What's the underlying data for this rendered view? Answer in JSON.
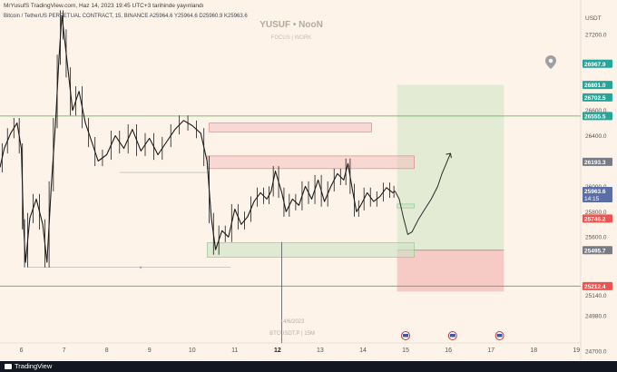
{
  "header": {
    "published": "MrYusufS TradingView.com, Haz 14, 2023 19:45 UTC+3 tarihinde yayınlandı",
    "symbol_line": "Bitcoin / TetherUS PERPETUAL CONTRACT, 15, BINANCE  A25964.6  Y25964.6  D25960.9  K25963.6"
  },
  "watermark": {
    "title": "YUSUF • NooN",
    "subtitle": "FOCUS | WORK"
  },
  "overlay": {
    "date_stamp": "14/6/2023",
    "symbol_stamp": "BTCUSDT.P | 15M"
  },
  "footer": {
    "brand": "TradingView"
  },
  "colors": {
    "background": "#fdf3e9",
    "candle": "#1a1a1a",
    "green_line": "#4caf50",
    "red_box": "#f2b8b5",
    "green_box": "#cde3c5",
    "price_tag_green": "#26a69a",
    "price_tag_red": "#ef5350",
    "price_tag_grey": "#787b86",
    "price_tag_blue": "#5b6ea8"
  },
  "chart_data": {
    "type": "candlestick",
    "y_axis_label": "USDT",
    "ylim": [
      24620,
      27400
    ],
    "yticks": [
      27200.0,
      26600.0,
      26400.0,
      26000.0,
      25800.0,
      25600.0,
      25140.0,
      24980.0,
      24700.0
    ],
    "xlim": [
      5.5,
      19.1
    ],
    "xticks": [
      {
        "x": 6,
        "label": "6"
      },
      {
        "x": 7,
        "label": "7"
      },
      {
        "x": 8,
        "label": "8"
      },
      {
        "x": 9,
        "label": "9"
      },
      {
        "x": 10,
        "label": "10"
      },
      {
        "x": 11,
        "label": "11"
      },
      {
        "x": 12,
        "label": "12"
      },
      {
        "x": 13,
        "label": "13"
      },
      {
        "x": 14,
        "label": "14"
      },
      {
        "x": 15,
        "label": "15"
      },
      {
        "x": 16,
        "label": "16"
      },
      {
        "x": 17,
        "label": "17"
      },
      {
        "x": 18,
        "label": "18"
      },
      {
        "x": 19,
        "label": "19"
      }
    ],
    "bold_tick": "12",
    "price_tags": [
      {
        "value": 26967.9,
        "label": "26967.9",
        "color": "#26a69a"
      },
      {
        "value": 26801.0,
        "label": "26801.0",
        "color": "#26a69a"
      },
      {
        "value": 26702.5,
        "label": "26702.5",
        "color": "#26a69a"
      },
      {
        "value": 26555.5,
        "label": "26555.5",
        "color": "#26a69a"
      },
      {
        "value": 26193.3,
        "label": "26193.3",
        "color": "#787b86"
      },
      {
        "value": 25963.6,
        "label": "25963.6",
        "sublabel": "14:15",
        "color": "#5b6ea8"
      },
      {
        "value": 25746.2,
        "label": "25746.2",
        "color": "#ef5350"
      },
      {
        "value": 25495.7,
        "label": "25495.7",
        "color": "#787b86"
      },
      {
        "value": 25212.4,
        "label": "25212.4",
        "color": "#ef5350"
      }
    ],
    "price_path": [
      [
        5.5,
        26150
      ],
      [
        5.6,
        26300
      ],
      [
        5.75,
        26420
      ],
      [
        5.9,
        26500
      ],
      [
        6.0,
        26300
      ],
      [
        6.05,
        25700
      ],
      [
        6.1,
        25400
      ],
      [
        6.2,
        25750
      ],
      [
        6.35,
        25900
      ],
      [
        6.5,
        25700
      ],
      [
        6.6,
        25400
      ],
      [
        6.7,
        26000
      ],
      [
        6.8,
        26500
      ],
      [
        6.88,
        27000
      ],
      [
        6.95,
        27350
      ],
      [
        7.0,
        27200
      ],
      [
        7.1,
        26900
      ],
      [
        7.2,
        26600
      ],
      [
        7.35,
        26750
      ],
      [
        7.5,
        26500
      ],
      [
        7.65,
        26350
      ],
      [
        7.8,
        26200
      ],
      [
        8.0,
        26250
      ],
      [
        8.2,
        26400
      ],
      [
        8.4,
        26300
      ],
      [
        8.6,
        26450
      ],
      [
        8.8,
        26280
      ],
      [
        9.0,
        26380
      ],
      [
        9.2,
        26250
      ],
      [
        9.4,
        26350
      ],
      [
        9.6,
        26450
      ],
      [
        9.8,
        26520
      ],
      [
        10.0,
        26480
      ],
      [
        10.2,
        26420
      ],
      [
        10.35,
        26200
      ],
      [
        10.45,
        25750
      ],
      [
        10.55,
        25500
      ],
      [
        10.7,
        25650
      ],
      [
        10.85,
        25600
      ],
      [
        11.0,
        25820
      ],
      [
        11.15,
        25700
      ],
      [
        11.3,
        25760
      ],
      [
        11.45,
        25880
      ],
      [
        11.6,
        25950
      ],
      [
        11.75,
        25900
      ],
      [
        11.85,
        25960
      ],
      [
        11.95,
        26120
      ],
      [
        12.1,
        25950
      ],
      [
        12.2,
        25800
      ],
      [
        12.35,
        25900
      ],
      [
        12.5,
        25850
      ],
      [
        12.65,
        26000
      ],
      [
        12.8,
        25900
      ],
      [
        12.95,
        26050
      ],
      [
        13.1,
        25880
      ],
      [
        13.25,
        26000
      ],
      [
        13.4,
        26100
      ],
      [
        13.55,
        26050
      ],
      [
        13.65,
        26180
      ],
      [
        13.75,
        25980
      ],
      [
        13.85,
        25800
      ],
      [
        13.95,
        25850
      ],
      [
        14.1,
        25950
      ],
      [
        14.25,
        25880
      ],
      [
        14.4,
        25920
      ],
      [
        14.55,
        25990
      ],
      [
        14.7,
        25950
      ],
      [
        14.75,
        25963.6
      ]
    ],
    "projection": [
      [
        14.75,
        25963.6
      ],
      [
        14.85,
        25900
      ],
      [
        14.95,
        25750
      ],
      [
        15.05,
        25620
      ],
      [
        15.15,
        25640
      ],
      [
        15.3,
        25740
      ],
      [
        15.45,
        25820
      ],
      [
        15.6,
        25900
      ],
      [
        15.75,
        26000
      ],
      [
        15.85,
        26100
      ],
      [
        15.95,
        26180
      ],
      [
        16.05,
        26260
      ]
    ],
    "green_lines": [
      26555.5,
      25212.4
    ],
    "zones": [
      {
        "kind": "red",
        "x1": 10.4,
        "x2": 14.2,
        "y1": 26430,
        "y2": 26500
      },
      {
        "kind": "red",
        "x1": 10.35,
        "x2": 15.2,
        "y1": 26140,
        "y2": 26240
      },
      {
        "kind": "green",
        "x1": 10.35,
        "x2": 15.2,
        "y1": 25440,
        "y2": 25555
      },
      {
        "kind": "green",
        "x1": 14.8,
        "x2": 15.2,
        "y1": 25830,
        "y2": 25860
      }
    ],
    "position": {
      "x1": 14.8,
      "x2": 17.3,
      "entry": 25495.7,
      "target": 26801.0,
      "stop": 25212.4
    },
    "gray_hlines": [
      {
        "x1": 8.3,
        "x2": 10.4,
        "y": 26110
      },
      {
        "x1": 6.15,
        "x2": 10.9,
        "y": 25360
      }
    ],
    "cross_mark": {
      "x": 8.8,
      "y": 25360
    },
    "vline_x": 12.1,
    "event_markers": [
      15.0,
      16.1,
      17.2
    ],
    "notes": "Price series read approximately from candle highs/lows; shown as a trace of the 15m candles."
  }
}
